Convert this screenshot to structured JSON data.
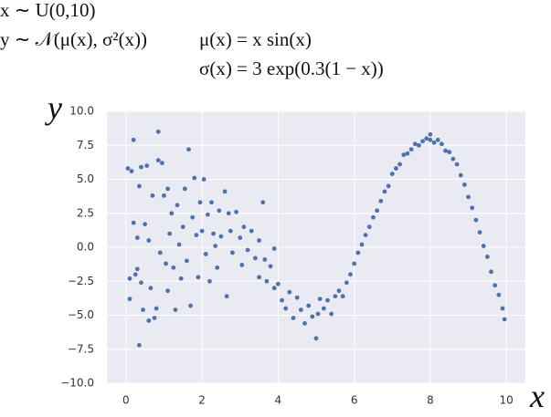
{
  "chart_data": {
    "type": "scatter",
    "annotations": [
      "x ∼ U(0,10)",
      "y ∼ 𝒩(μ(x), σ²(x))",
      "μ(x) = x sin(x)",
      "σ(x) = 3 exp(0.3(1 − x))"
    ],
    "xlabel": "x",
    "ylabel": "y",
    "xlim": [
      -0.5,
      10.5
    ],
    "ylim": [
      -10,
      10
    ],
    "xticks": [
      0,
      2,
      4,
      6,
      8,
      10
    ],
    "yticks": [
      {
        "value": 10,
        "label": "10.0"
      },
      {
        "value": 7.5,
        "label": "7.5"
      },
      {
        "value": 5,
        "label": "5.0"
      },
      {
        "value": 2.5,
        "label": "2.5"
      },
      {
        "value": 0,
        "label": "0.0"
      },
      {
        "value": -2.5,
        "label": "−2.5"
      },
      {
        "value": -5,
        "label": "−5.0"
      },
      {
        "value": -7.5,
        "label": "−7.5"
      },
      {
        "value": -10,
        "label": "−10.0"
      }
    ],
    "grid": true,
    "series": [
      {
        "color": "#4c72b0",
        "x": [
          0.05,
          0.1,
          0.1,
          0.15,
          0.2,
          0.2,
          0.25,
          0.3,
          0.3,
          0.35,
          0.35,
          0.4,
          0.4,
          0.45,
          0.5,
          0.55,
          0.6,
          0.6,
          0.65,
          0.7,
          0.75,
          0.8,
          0.85,
          0.85,
          0.9,
          0.95,
          1.0,
          1.05,
          1.1,
          1.1,
          1.15,
          1.2,
          1.25,
          1.3,
          1.35,
          1.4,
          1.45,
          1.5,
          1.55,
          1.6,
          1.65,
          1.7,
          1.75,
          1.8,
          1.85,
          1.9,
          1.95,
          2.0,
          2.05,
          2.1,
          2.15,
          2.2,
          2.25,
          2.3,
          2.35,
          2.4,
          2.45,
          2.5,
          2.6,
          2.65,
          2.7,
          2.75,
          2.8,
          2.9,
          3.0,
          3.05,
          3.1,
          3.2,
          3.3,
          3.4,
          3.5,
          3.5,
          3.6,
          3.65,
          3.7,
          3.8,
          3.9,
          3.9,
          4.0,
          4.1,
          4.2,
          4.3,
          4.4,
          4.5,
          4.6,
          4.7,
          4.8,
          4.9,
          5.0,
          5.05,
          5.1,
          5.2,
          5.3,
          5.4,
          5.5,
          5.6,
          5.7,
          5.8,
          5.9,
          6.0,
          6.1,
          6.2,
          6.3,
          6.4,
          6.5,
          6.6,
          6.7,
          6.8,
          6.9,
          7.0,
          7.1,
          7.2,
          7.3,
          7.4,
          7.5,
          7.6,
          7.7,
          7.8,
          7.9,
          8.0,
          8.0,
          8.1,
          8.2,
          8.3,
          8.4,
          8.5,
          8.6,
          8.7,
          8.8,
          8.9,
          9.0,
          9.1,
          9.2,
          9.3,
          9.4,
          9.5,
          9.6,
          9.7,
          9.8,
          9.9,
          9.95
        ],
        "values": [
          5.8,
          -2.3,
          -3.8,
          5.6,
          1.8,
          7.9,
          -2,
          0.7,
          -1.6,
          -7.2,
          4.5,
          5.9,
          -2.6,
          -4.6,
          1.7,
          6,
          -5.4,
          0.5,
          -3,
          3.8,
          -5.2,
          -4.5,
          6.4,
          8.5,
          -0.4,
          6.2,
          3.8,
          -1.2,
          4.3,
          -3.2,
          1,
          2.5,
          -1.5,
          -4.6,
          3.1,
          0.2,
          -2.3,
          1.5,
          4.3,
          -1,
          7.2,
          -4.3,
          2.2,
          5.1,
          0.9,
          -2.2,
          3.3,
          1.2,
          5.0,
          -0.5,
          2.4,
          -2.5,
          3.3,
          1.0,
          0.1,
          -1.5,
          2.7,
          0.8,
          4.1,
          -3.6,
          2.5,
          1.2,
          -0.4,
          2.6,
          0.7,
          -1.3,
          1.5,
          -0.2,
          1.2,
          -0.8,
          0.5,
          -2.2,
          3.3,
          -0.9,
          -2.5,
          -1.4,
          -0.1,
          -3,
          -2.7,
          -3.9,
          -4.5,
          -3.3,
          -5.2,
          -3.7,
          -4.6,
          -5.6,
          -4.3,
          -5.1,
          -6.7,
          -4.9,
          -3.8,
          -4.5,
          -3.9,
          -4.9,
          -3.6,
          -3.2,
          -3.6,
          -2.6,
          -2.0,
          -1.2,
          -0.4,
          0.2,
          0.9,
          1.5,
          2.2,
          2.7,
          3.4,
          4.1,
          4.5,
          5.4,
          5.8,
          6.1,
          6.8,
          6.9,
          7.2,
          7.6,
          7.5,
          7.8,
          8.0,
          7.9,
          8.3,
          7.7,
          7.9,
          7.6,
          7.1,
          7.0,
          6.5,
          6.1,
          5.3,
          4.6,
          3.7,
          2.9,
          2.0,
          1.1,
          0.1,
          -0.7,
          -1.8,
          -2.8,
          -3.5,
          -4.5,
          -5.3
        ]
      }
    ]
  }
}
